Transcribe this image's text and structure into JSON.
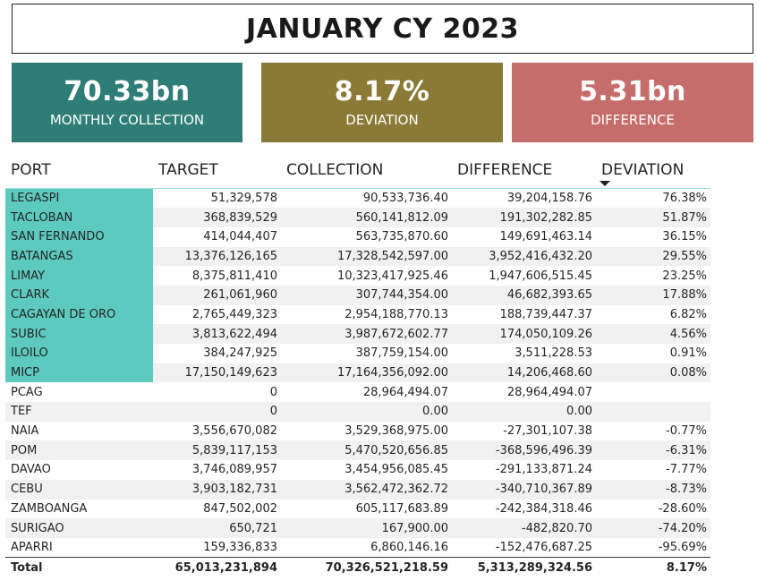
{
  "title": "JANUARY CY 2023",
  "cards": {
    "collection": {
      "value": "70.33bn",
      "label": "MONTHLY COLLECTION",
      "color": "#2e7d76"
    },
    "deviation": {
      "value": "8.17%",
      "label": "DEVIATION",
      "color": "#8a7a36"
    },
    "difference": {
      "value": "5.31bn",
      "label": "DIFFERENCE",
      "color": "#c56d6b"
    }
  },
  "table": {
    "headers": [
      "PORT",
      "TARGET",
      "COLLECTION",
      "DIFFERENCE",
      "DEVIATION"
    ],
    "sorted_column": "DEVIATION",
    "sort_direction": "descending",
    "highlight_color": "#5dcac0",
    "rows": [
      {
        "port": "LEGASPI",
        "target": "51,329,578",
        "collection": "90,533,736.40",
        "difference": "39,204,158.76",
        "deviation": "76.38%",
        "highlight": true
      },
      {
        "port": "TACLOBAN",
        "target": "368,839,529",
        "collection": "560,141,812.09",
        "difference": "191,302,282.85",
        "deviation": "51.87%",
        "highlight": true
      },
      {
        "port": "SAN FERNANDO",
        "target": "414,044,407",
        "collection": "563,735,870.60",
        "difference": "149,691,463.14",
        "deviation": "36.15%",
        "highlight": true
      },
      {
        "port": "BATANGAS",
        "target": "13,376,126,165",
        "collection": "17,328,542,597.00",
        "difference": "3,952,416,432.20",
        "deviation": "29.55%",
        "highlight": true
      },
      {
        "port": "LIMAY",
        "target": "8,375,811,410",
        "collection": "10,323,417,925.46",
        "difference": "1,947,606,515.45",
        "deviation": "23.25%",
        "highlight": true
      },
      {
        "port": "CLARK",
        "target": "261,061,960",
        "collection": "307,744,354.00",
        "difference": "46,682,393.65",
        "deviation": "17.88%",
        "highlight": true
      },
      {
        "port": "CAGAYAN DE ORO",
        "target": "2,765,449,323",
        "collection": "2,954,188,770.13",
        "difference": "188,739,447.37",
        "deviation": "6.82%",
        "highlight": true
      },
      {
        "port": "SUBIC",
        "target": "3,813,622,494",
        "collection": "3,987,672,602.77",
        "difference": "174,050,109.26",
        "deviation": "4.56%",
        "highlight": true
      },
      {
        "port": "ILOILO",
        "target": "384,247,925",
        "collection": "387,759,154.00",
        "difference": "3,511,228.53",
        "deviation": "0.91%",
        "highlight": true
      },
      {
        "port": "MICP",
        "target": "17,150,149,623",
        "collection": "17,164,356,092.00",
        "difference": "14,206,468.60",
        "deviation": "0.08%",
        "highlight": true
      },
      {
        "port": "PCAG",
        "target": "0",
        "collection": "28,964,494.07",
        "difference": "28,964,494.07",
        "deviation": "",
        "highlight": false
      },
      {
        "port": "TEF",
        "target": "0",
        "collection": "0.00",
        "difference": "0.00",
        "deviation": "",
        "highlight": false
      },
      {
        "port": "NAIA",
        "target": "3,556,670,082",
        "collection": "3,529,368,975.00",
        "difference": "-27,301,107.38",
        "deviation": "-0.77%",
        "highlight": false
      },
      {
        "port": "POM",
        "target": "5,839,117,153",
        "collection": "5,470,520,656.85",
        "difference": "-368,596,496.39",
        "deviation": "-6.31%",
        "highlight": false
      },
      {
        "port": "DAVAO",
        "target": "3,746,089,957",
        "collection": "3,454,956,085.45",
        "difference": "-291,133,871.24",
        "deviation": "-7.77%",
        "highlight": false
      },
      {
        "port": "CEBU",
        "target": "3,903,182,731",
        "collection": "3,562,472,362.72",
        "difference": "-340,710,367.89",
        "deviation": "-8.73%",
        "highlight": false
      },
      {
        "port": "ZAMBOANGA",
        "target": "847,502,002",
        "collection": "605,117,683.89",
        "difference": "-242,384,318.46",
        "deviation": "-28.60%",
        "highlight": false
      },
      {
        "port": "SURIGAO",
        "target": "650,721",
        "collection": "167,900.00",
        "difference": "-482,820.70",
        "deviation": "-74.20%",
        "highlight": false
      },
      {
        "port": "APARRI",
        "target": "159,336,833",
        "collection": "6,860,146.16",
        "difference": "-152,476,687.25",
        "deviation": "-95.69%",
        "highlight": false
      }
    ],
    "total": {
      "port": "Total",
      "target": "65,013,231,894",
      "collection": "70,326,521,218.59",
      "difference": "5,313,289,324.56",
      "deviation": "8.17%"
    }
  }
}
